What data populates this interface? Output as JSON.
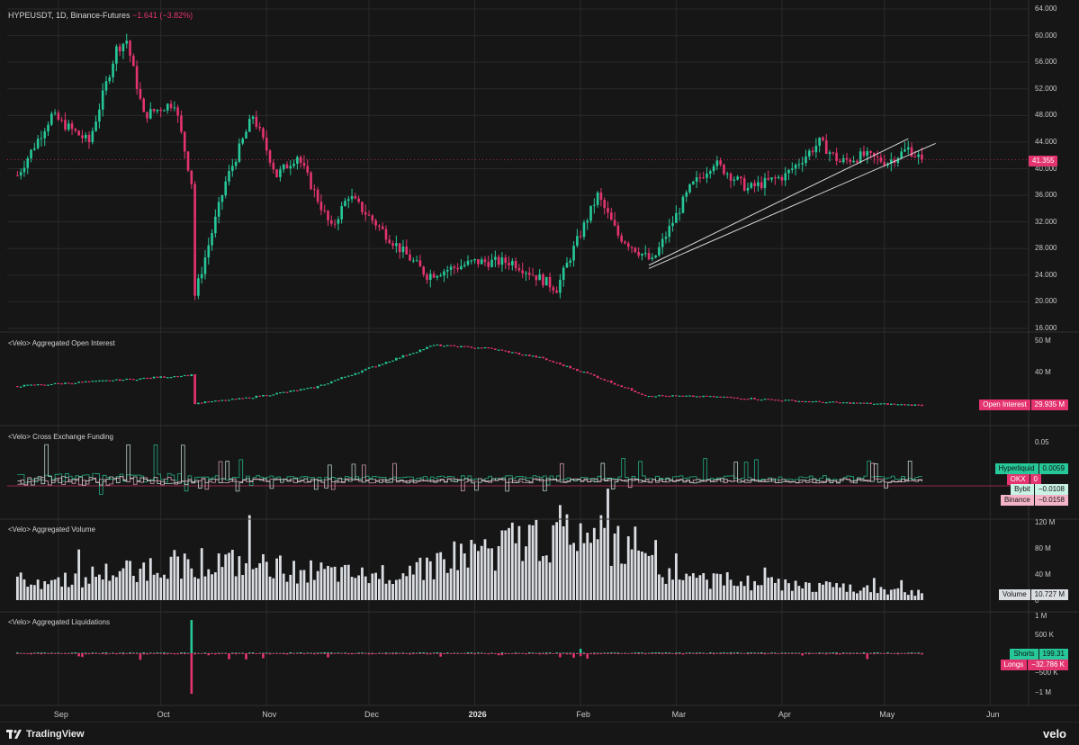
{
  "header": {
    "symbol": "HYPEUSDT, 1D, Binance-Futures",
    "change": "−1.641 (−3.82%)"
  },
  "colors": {
    "up": "#26c89a",
    "down": "#e4346f",
    "background": "#161616",
    "grid": "#2a2a2a"
  },
  "x_axis": {
    "labels": [
      "Sep",
      "Oct",
      "Nov",
      "Dec",
      "2026",
      "Feb",
      "Mar",
      "Apr",
      "May",
      "Jun"
    ]
  },
  "footer": {
    "brand": "TradingView",
    "brand_icon": "tradingview-logo-icon",
    "right_brand": "velo"
  },
  "chart_data": [
    {
      "type": "candlestick",
      "panel": "price",
      "title": "HYPEUSDT, 1D, Binance-Futures",
      "ylim": [
        16,
        64
      ],
      "yticks": [
        "64.000",
        "60.000",
        "56.000",
        "52.000",
        "48.000",
        "44.000",
        "40.000",
        "36.000",
        "32.000",
        "28.000",
        "24.000",
        "20.000",
        "16.000"
      ],
      "last_price": "41.355",
      "trendlines": [
        {
          "from": [
            "Feb 21",
            25.5
          ],
          "to": [
            "May 8",
            44.5
          ]
        },
        {
          "from": [
            "Feb 21",
            25.0
          ],
          "to": [
            "May 16",
            43.8
          ]
        }
      ],
      "key_points": [
        {
          "x": "Aug 20",
          "y": 39
        },
        {
          "x": "Aug 30",
          "y": 48
        },
        {
          "x": "Sep 10",
          "y": 44
        },
        {
          "x": "Sep 18",
          "y": 58
        },
        {
          "x": "Sep 21",
          "y": 59.3
        },
        {
          "x": "Sep 26",
          "y": 48
        },
        {
          "x": "Oct 5",
          "y": 50
        },
        {
          "x": "Oct 10",
          "y": 38
        },
        {
          "x": "Oct 11",
          "y": 21
        },
        {
          "x": "Oct 20",
          "y": 38
        },
        {
          "x": "Oct 28",
          "y": 48
        },
        {
          "x": "Nov 4",
          "y": 39
        },
        {
          "x": "Nov 10",
          "y": 42
        },
        {
          "x": "Nov 20",
          "y": 31
        },
        {
          "x": "Nov 25",
          "y": 36
        },
        {
          "x": "Dec 10",
          "y": 28
        },
        {
          "x": "Dec 18",
          "y": 24
        },
        {
          "x": "Jan 1",
          "y": 26
        },
        {
          "x": "Jan 12",
          "y": 26
        },
        {
          "x": "Jan 25",
          "y": 22
        },
        {
          "x": "Jan 30",
          "y": 28
        },
        {
          "x": "Feb 6",
          "y": 36
        },
        {
          "x": "Feb 12",
          "y": 30
        },
        {
          "x": "Feb 22",
          "y": 26
        },
        {
          "x": "Mar 5",
          "y": 37
        },
        {
          "x": "Mar 12",
          "y": 41
        },
        {
          "x": "Mar 22",
          "y": 37
        },
        {
          "x": "Apr 2",
          "y": 39
        },
        {
          "x": "Apr 12",
          "y": 44
        },
        {
          "x": "Apr 18",
          "y": 41
        },
        {
          "x": "Apr 25",
          "y": 42
        },
        {
          "x": "May 2",
          "y": 41
        },
        {
          "x": "May 8",
          "y": 43
        },
        {
          "x": "May 12",
          "y": 41.355
        }
      ]
    },
    {
      "type": "candlestick",
      "panel": "open_interest",
      "title": "<Velo> Aggregated Open Interest",
      "yticks": [
        "50 M",
        "40 M"
      ],
      "series": [
        {
          "name": "Open Interest",
          "last": "29.935 M"
        }
      ],
      "key_points": [
        {
          "x": "Aug 20",
          "y": 36.0
        },
        {
          "x": "Sep 20",
          "y": 38.0
        },
        {
          "x": "Oct 10",
          "y": 39.5
        },
        {
          "x": "Oct 11",
          "y": 30.5
        },
        {
          "x": "Oct 25",
          "y": 32.0
        },
        {
          "x": "Nov 15",
          "y": 35.5
        },
        {
          "x": "Dec 20",
          "y": 49.0
        },
        {
          "x": "Jan 5",
          "y": 48.0
        },
        {
          "x": "Jan 20",
          "y": 45.0
        },
        {
          "x": "Feb 3",
          "y": 40.0
        },
        {
          "x": "Feb 20",
          "y": 33.0
        },
        {
          "x": "Mar 15",
          "y": 32.5
        },
        {
          "x": "Apr 10",
          "y": 31.0
        },
        {
          "x": "May 12",
          "y": 29.9
        }
      ]
    },
    {
      "type": "line",
      "panel": "funding",
      "title": "<Velo> Cross Exchange Funding",
      "yticks": [
        "0.05"
      ],
      "series": [
        {
          "name": "Hyperliquid",
          "last": "0.0059"
        },
        {
          "name": "OKX",
          "last": "0"
        },
        {
          "name": "Bybit",
          "last": "−0.0108"
        },
        {
          "name": "Binance",
          "last": "−0.0158"
        }
      ]
    },
    {
      "type": "bar",
      "panel": "volume",
      "title": "<Velo> Aggregated Volume",
      "yticks": [
        "120 M",
        "80 M",
        "40 M",
        "0"
      ],
      "series": [
        {
          "name": "Volume",
          "last": "10.727 M"
        }
      ],
      "key_points": [
        {
          "x": "Sep 1",
          "y": 30
        },
        {
          "x": "Oct 11",
          "y": 60
        },
        {
          "x": "Dec 1",
          "y": 35
        },
        {
          "x": "Feb 1",
          "y": 110
        },
        {
          "x": "Mar 1",
          "y": 35
        },
        {
          "x": "May 12",
          "y": 10.7
        }
      ]
    },
    {
      "type": "bar",
      "panel": "liquidations",
      "title": "<Velo> Aggregated Liquidations",
      "yticks": [
        "1 M",
        "500 K",
        "0",
        "−500 K",
        "−1 M"
      ],
      "series": [
        {
          "name": "Shorts",
          "last": "199.31"
        },
        {
          "name": "Longs",
          "last": "−32.786 K"
        }
      ],
      "key_points": [
        {
          "x": "Oct 10",
          "shorts": 900,
          "longs": -1100
        },
        {
          "x": "Sep 25",
          "shorts": 10,
          "longs": -180
        },
        {
          "x": "Feb 1",
          "shorts": 120,
          "longs": -80
        }
      ]
    }
  ]
}
